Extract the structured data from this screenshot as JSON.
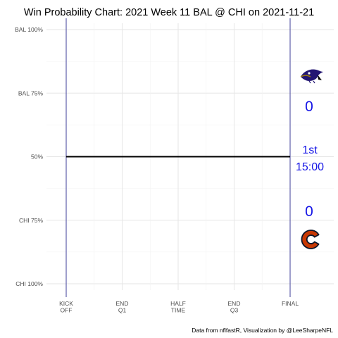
{
  "chart_data": {
    "type": "line",
    "title": "Win Probability Chart: 2021 Week 11 BAL @ CHI on 2021-11-21",
    "y_ticks": [
      "BAL 100%",
      "BAL 75%",
      "50%",
      "CHI 75%",
      "CHI 100%"
    ],
    "x_ticks": [
      [
        "KICK",
        "OFF"
      ],
      [
        "END",
        "Q1"
      ],
      [
        "HALF",
        "TIME"
      ],
      [
        "END",
        "Q3"
      ],
      [
        "FINAL"
      ]
    ],
    "xlim": [
      0,
      4
    ],
    "ylim": [
      -1,
      1
    ],
    "series": [
      {
        "x": [
          0,
          4
        ],
        "y": [
          0,
          0
        ],
        "color": "#000000"
      }
    ],
    "grid": true,
    "colors": {
      "score_text": "#1515e6",
      "boundary_lines": "#3f3f9a",
      "ravens_purple": "#241773",
      "bears_orange": "#c83803",
      "bears_navy": "#0b162a"
    },
    "annotations": {
      "away_team_logo": "ravens-logo",
      "home_team_logo": "bears-logo",
      "away_score": "0",
      "home_score": "0",
      "quarter": "1st",
      "clock": "15:00"
    },
    "caption": "Data from nflfastR, Visualization by @LeeSharpeNFL"
  }
}
